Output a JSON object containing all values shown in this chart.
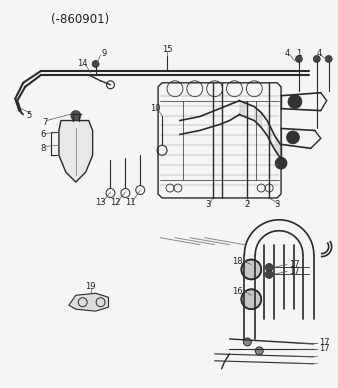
{
  "title": "(-860901)",
  "bg_color": "#f5f5f5",
  "line_color": "#2a2a2a",
  "text_color": "#222222",
  "fig_width": 3.38,
  "fig_height": 3.88,
  "dpi": 100
}
